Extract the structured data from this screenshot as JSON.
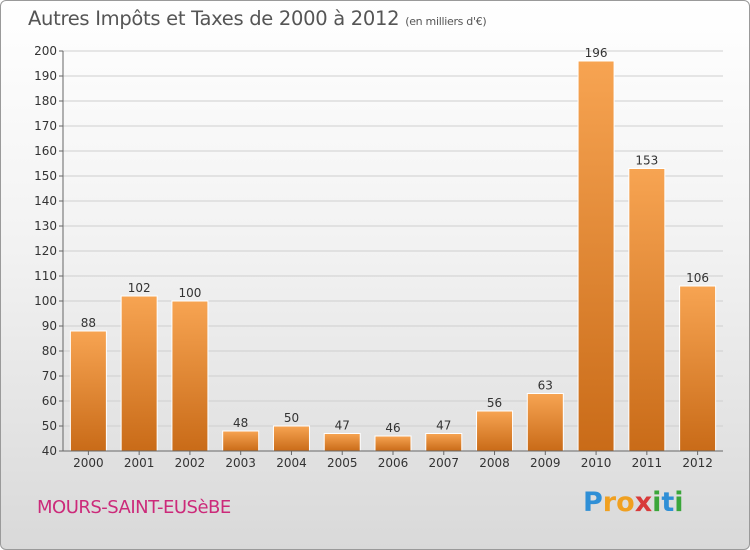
{
  "header": {
    "title": "Autres Impôts et Taxes de 2000 à 2012",
    "subtitle": "(en milliers d'€)"
  },
  "commune": "MOURS-SAINT-EUSèBE",
  "logo": {
    "letters": [
      "P",
      "r",
      "o",
      "x",
      "i",
      "t",
      "i"
    ],
    "colors": [
      "#2f8fd6",
      "#f0a020",
      "#f0a020",
      "#d83a3a",
      "#3aa63a",
      "#2f8fd6",
      "#3aa63a"
    ]
  },
  "colors": {
    "bar_top": "#f7a452",
    "bar_bottom": "#c96b18",
    "bar_stroke": "#ffffff",
    "grid": "#cfcfcf"
  },
  "chart_data": {
    "type": "bar",
    "categories": [
      "2000",
      "2001",
      "2002",
      "2003",
      "2004",
      "2005",
      "2006",
      "2007",
      "2008",
      "2009",
      "2010",
      "2011",
      "2012"
    ],
    "values": [
      88,
      102,
      100,
      48,
      50,
      47,
      46,
      47,
      56,
      63,
      196,
      153,
      106
    ],
    "title": "Autres Impôts et Taxes de 2000 à 2012",
    "xlabel": "",
    "ylabel": "",
    "ylim": [
      40,
      200
    ],
    "yticks": [
      40,
      50,
      60,
      70,
      80,
      90,
      100,
      110,
      120,
      130,
      140,
      150,
      160,
      170,
      180,
      190,
      200
    ],
    "grid": true,
    "legend": "none"
  }
}
